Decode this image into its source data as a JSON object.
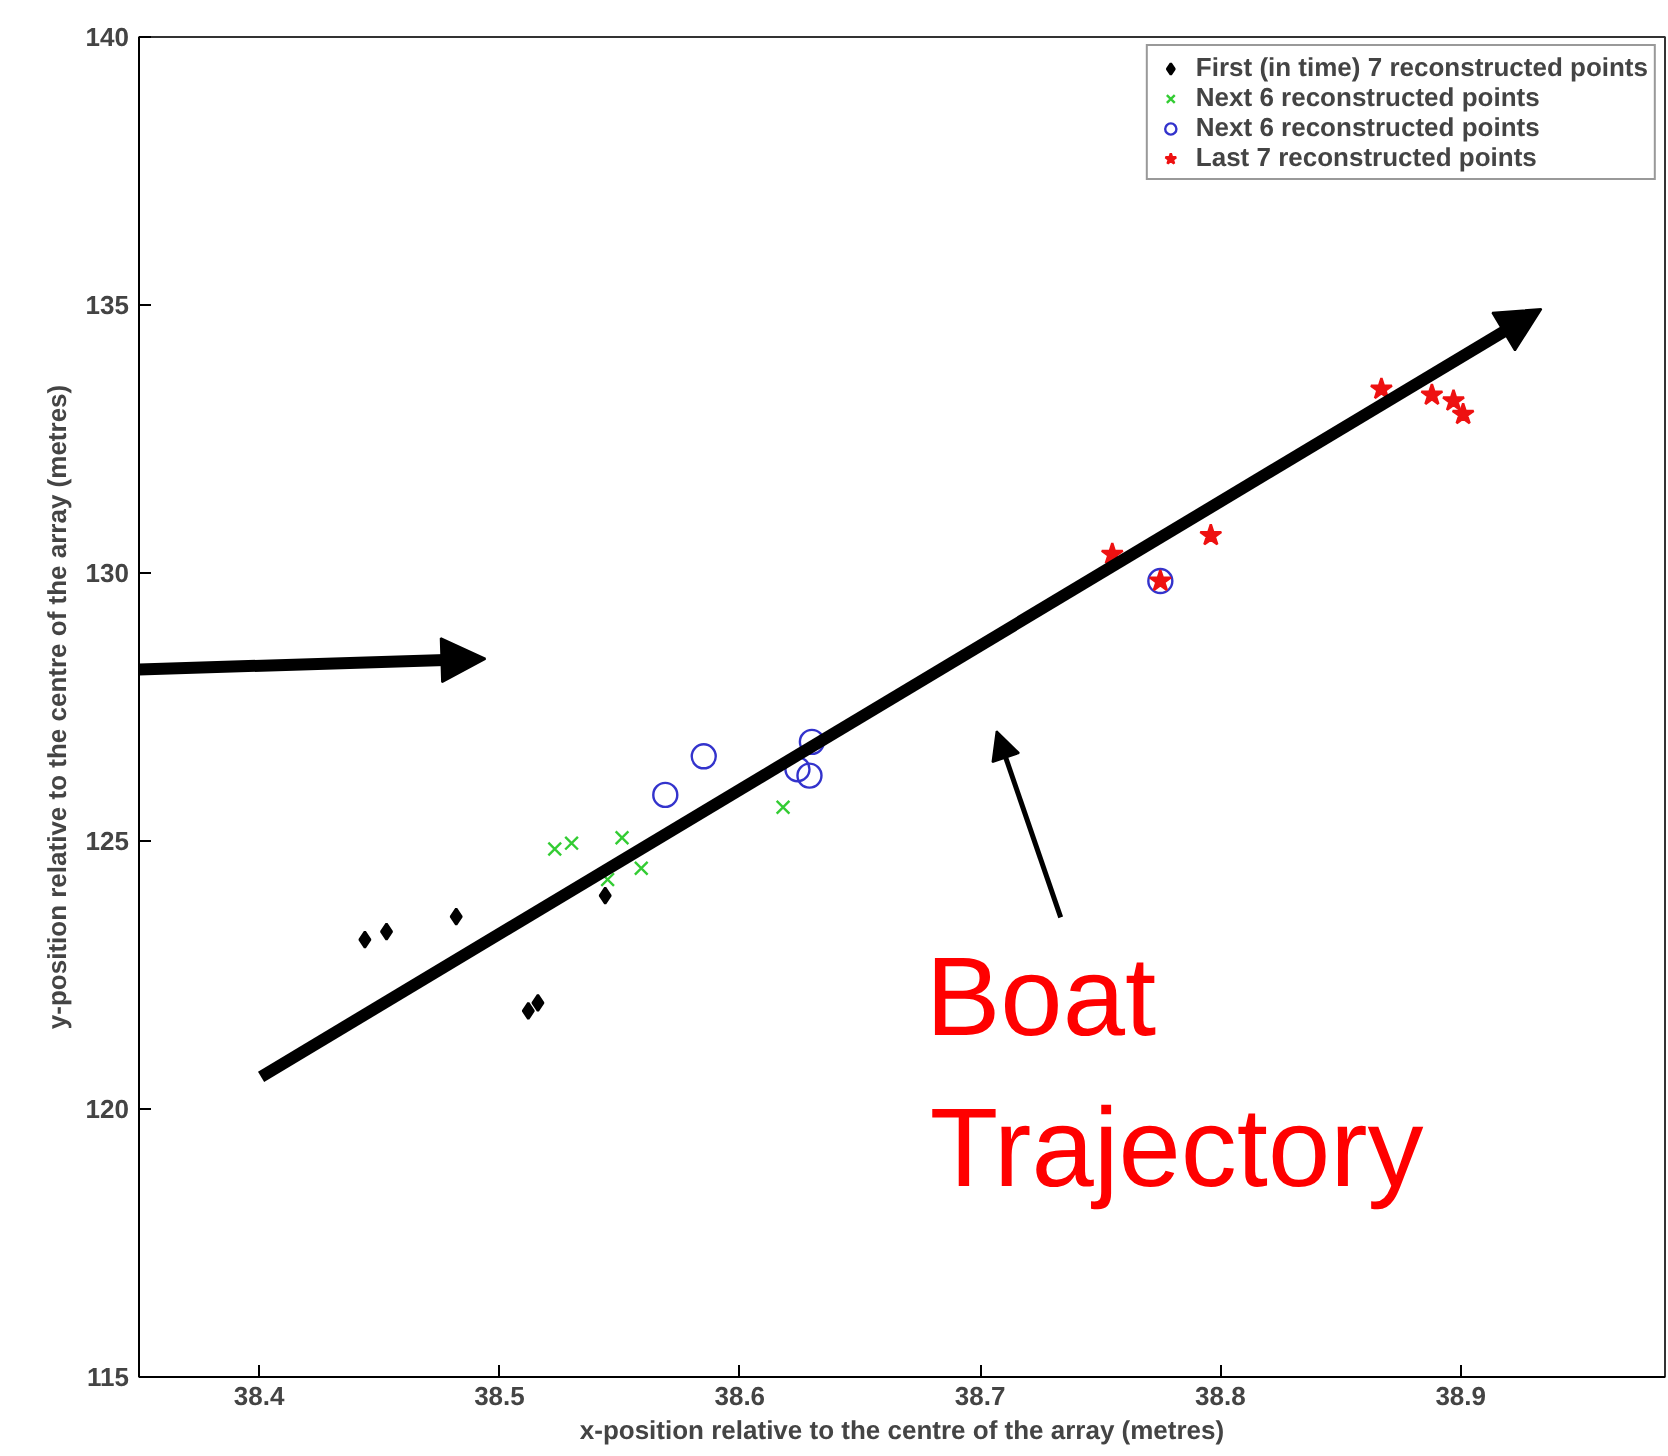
{
  "chart_data": {
    "type": "scatter",
    "xlabel": "x-position relative to the centre of the array (metres)",
    "ylabel": "y-position relative to the centre of the array (metres)",
    "xlim": [
      38.35,
      38.985
    ],
    "ylim": [
      115,
      140
    ],
    "xticks": [
      38.4,
      38.5,
      38.6,
      38.7,
      38.8,
      38.9
    ],
    "yticks": [
      115,
      120,
      125,
      130,
      135,
      140
    ],
    "legend": "top right",
    "series": [
      {
        "name": "First (in time) 7 reconstructed points",
        "color": "#000000",
        "marker": "diamond",
        "x": [
          38.444,
          38.453,
          38.482,
          38.544,
          38.512,
          38.516
        ],
        "values": [
          123.16,
          123.31,
          123.59,
          123.98,
          121.83,
          121.98
        ]
      },
      {
        "name": "Next 6 reconstructed points",
        "color": "#33cc33",
        "marker": "cross",
        "x": [
          38.523,
          38.53,
          38.551,
          38.545,
          38.559,
          38.618
        ],
        "values": [
          124.85,
          124.96,
          125.06,
          124.28,
          124.49,
          125.63
        ]
      },
      {
        "name": "Next 6 reconstructed points",
        "color": "#3333cc",
        "marker": "circle",
        "x": [
          38.569,
          38.585,
          38.63,
          38.624,
          38.629,
          38.775
        ],
        "values": [
          125.86,
          126.58,
          126.85,
          126.34,
          126.22,
          129.85
        ]
      },
      {
        "name": "Last 7 reconstructed points",
        "color": "#ee1111",
        "marker": "star",
        "x": [
          38.755,
          38.775,
          38.796,
          38.867,
          38.888,
          38.897,
          38.901
        ],
        "values": [
          130.35,
          129.85,
          130.7,
          133.43,
          133.32,
          133.21,
          132.96
        ]
      }
    ],
    "annotations": [
      "Boat Trajectory"
    ]
  }
}
